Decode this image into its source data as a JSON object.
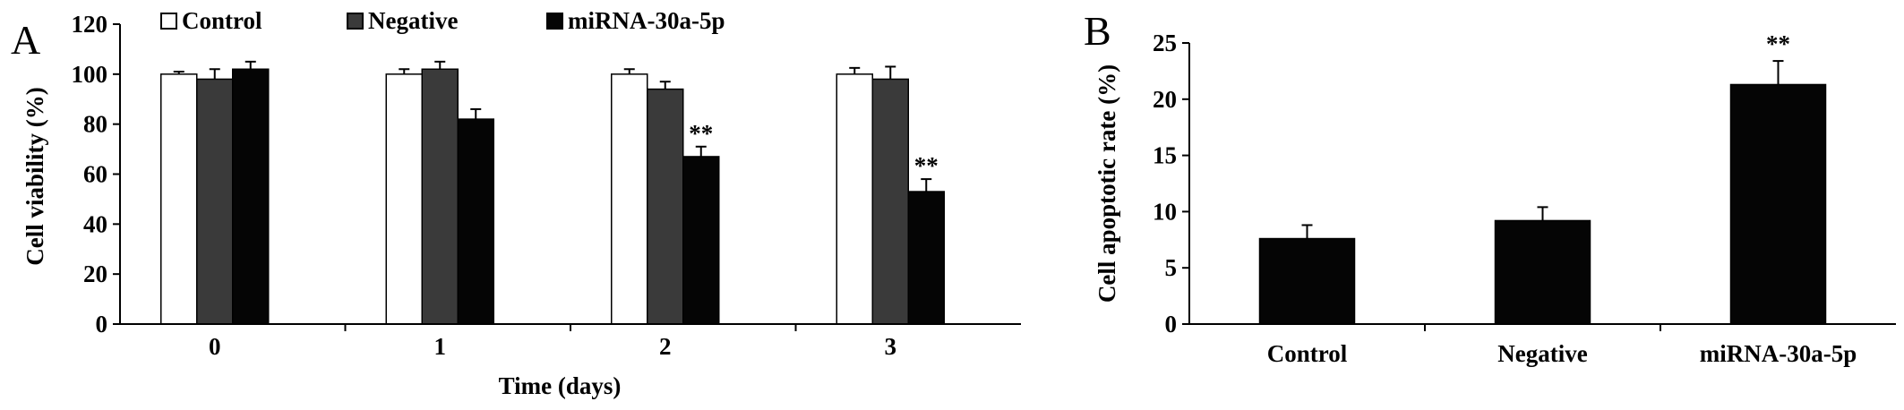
{
  "chart_data": [
    {
      "panel": "A",
      "type": "bar",
      "categories": [
        "0",
        "1",
        "2",
        "3"
      ],
      "xlabel": "Time (days)",
      "ylabel": "Cell  viability (%)",
      "ylim": [
        0,
        120
      ],
      "yticks": [
        "0",
        "20",
        "40",
        "60",
        "80",
        "100",
        "120"
      ],
      "legend": "top",
      "series": [
        {
          "name": "Control",
          "color": "#ffffff",
          "values": [
            100,
            100,
            100,
            100
          ],
          "errors": [
            1,
            2,
            2,
            2.5
          ]
        },
        {
          "name": "Negative",
          "color": "#3a3a3a",
          "values": [
            98,
            102,
            94,
            98
          ],
          "errors": [
            4,
            3,
            3,
            5
          ]
        },
        {
          "name": "miRNA-30a-5p",
          "color": "#050505",
          "values": [
            102,
            82,
            67,
            53
          ],
          "errors": [
            3,
            4,
            4,
            5
          ]
        }
      ],
      "annotations": [
        {
          "category": "2",
          "series": "miRNA-30a-5p",
          "text": "**"
        },
        {
          "category": "3",
          "series": "miRNA-30a-5p",
          "text": "**"
        }
      ]
    },
    {
      "panel": "B",
      "type": "bar",
      "categories": [
        "Control",
        "Negative",
        "miRNA-30a-5p"
      ],
      "ylabel": "Cell apoptotic rate (%)",
      "ylim": [
        0,
        25
      ],
      "yticks": [
        "0",
        "5",
        "10",
        "15",
        "20",
        "25"
      ],
      "series": [
        {
          "name": "",
          "color": "#050505",
          "values": [
            7.6,
            9.2,
            21.3
          ],
          "errors": [
            1.2,
            1.2,
            2.1
          ]
        }
      ],
      "annotations": [
        {
          "category": "miRNA-30a-5p",
          "text": "**"
        }
      ]
    }
  ]
}
